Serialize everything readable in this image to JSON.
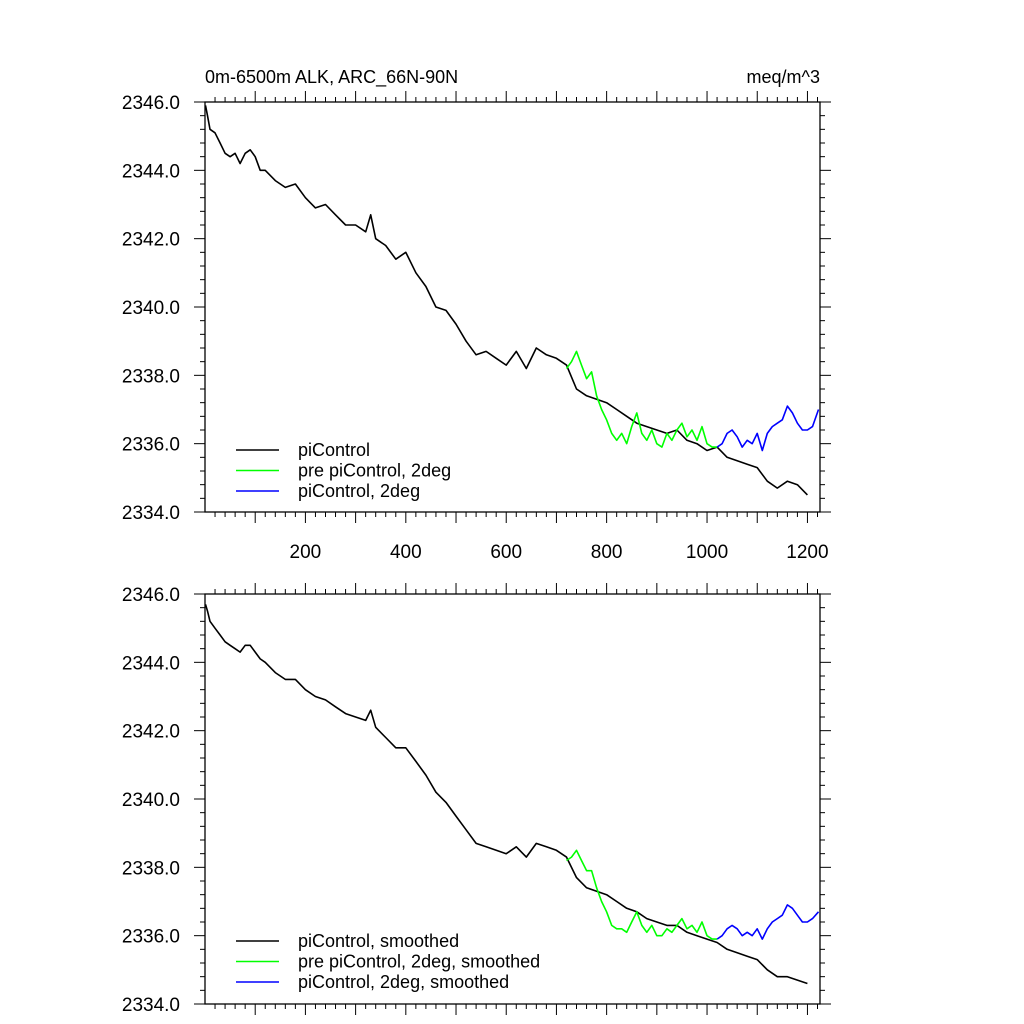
{
  "chart_data": [
    {
      "type": "line",
      "title": "0m-6500m ALK, ARC_66N-90N",
      "units": "meq/m^3",
      "xlim": [
        0,
        1225
      ],
      "ylim": [
        2334.0,
        2346.0
      ],
      "x_ticks": [
        200,
        400,
        600,
        800,
        1000,
        1200
      ],
      "x_tick_labels": [
        "200",
        "400",
        "600",
        "800",
        "1000",
        "1200"
      ],
      "y_ticks": [
        2334.0,
        2336.0,
        2338.0,
        2340.0,
        2342.0,
        2344.0,
        2346.0
      ],
      "y_tick_labels": [
        "2334.0",
        "2336.0",
        "2338.0",
        "2340.0",
        "2342.0",
        "2344.0",
        "2346.0"
      ],
      "legend_position": "bottom-left",
      "series": [
        {
          "name": "piControl",
          "color": "#000000",
          "x": [
            1,
            5,
            10,
            20,
            30,
            40,
            50,
            60,
            70,
            80,
            90,
            100,
            110,
            120,
            140,
            160,
            180,
            200,
            220,
            240,
            260,
            280,
            300,
            320,
            330,
            340,
            360,
            380,
            400,
            420,
            440,
            460,
            480,
            500,
            520,
            540,
            560,
            580,
            600,
            620,
            640,
            660,
            680,
            700,
            720,
            740,
            760,
            780,
            800,
            820,
            840,
            860,
            880,
            900,
            920,
            940,
            960,
            980,
            1000,
            1020,
            1040,
            1060,
            1080,
            1100,
            1120,
            1140,
            1160,
            1180,
            1200
          ],
          "values": [
            2345.9,
            2345.6,
            2345.2,
            2345.1,
            2344.8,
            2344.5,
            2344.4,
            2344.5,
            2344.2,
            2344.5,
            2344.6,
            2344.4,
            2344.0,
            2344.0,
            2343.7,
            2343.5,
            2343.6,
            2343.2,
            2342.9,
            2343.0,
            2342.7,
            2342.4,
            2342.4,
            2342.2,
            2342.7,
            2342.0,
            2341.8,
            2341.4,
            2341.6,
            2341.0,
            2340.6,
            2340.0,
            2339.9,
            2339.5,
            2339.0,
            2338.6,
            2338.7,
            2338.5,
            2338.3,
            2338.7,
            2338.2,
            2338.8,
            2338.6,
            2338.5,
            2338.3,
            2337.6,
            2337.4,
            2337.3,
            2337.2,
            2337.0,
            2336.8,
            2336.6,
            2336.5,
            2336.4,
            2336.3,
            2336.4,
            2336.1,
            2336.0,
            2335.8,
            2335.9,
            2335.6,
            2335.5,
            2335.4,
            2335.3,
            2334.9,
            2334.7,
            2334.9,
            2334.8,
            2334.5
          ]
        },
        {
          "name": "pre piControl, 2deg",
          "color": "#00ff00",
          "x": [
            720,
            730,
            740,
            750,
            760,
            770,
            780,
            790,
            800,
            810,
            820,
            830,
            840,
            850,
            860,
            870,
            880,
            890,
            900,
            910,
            920,
            930,
            940,
            950,
            960,
            970,
            980,
            990,
            1000,
            1010,
            1020
          ],
          "values": [
            2338.2,
            2338.4,
            2338.7,
            2338.3,
            2337.9,
            2338.1,
            2337.4,
            2337.0,
            2336.7,
            2336.3,
            2336.1,
            2336.3,
            2336.0,
            2336.5,
            2336.9,
            2336.3,
            2336.1,
            2336.4,
            2336.0,
            2335.9,
            2336.3,
            2336.1,
            2336.4,
            2336.6,
            2336.2,
            2336.4,
            2336.1,
            2336.5,
            2336.0,
            2335.9,
            2335.9
          ]
        },
        {
          "name": "piControl, 2deg",
          "color": "#0000ff",
          "x": [
            1020,
            1030,
            1040,
            1050,
            1060,
            1070,
            1080,
            1090,
            1100,
            1110,
            1120,
            1130,
            1140,
            1150,
            1160,
            1170,
            1180,
            1190,
            1200,
            1210,
            1222
          ],
          "values": [
            2335.9,
            2336.0,
            2336.3,
            2336.4,
            2336.2,
            2335.9,
            2336.1,
            2336.0,
            2336.3,
            2335.8,
            2336.3,
            2336.5,
            2336.6,
            2336.7,
            2337.1,
            2336.9,
            2336.6,
            2336.4,
            2336.4,
            2336.5,
            2337.0
          ]
        }
      ]
    },
    {
      "type": "line",
      "title": "",
      "xlim": [
        0,
        1225
      ],
      "ylim": [
        2334.0,
        2346.0
      ],
      "x_ticks": [
        200,
        400,
        600,
        800,
        1000,
        1200
      ],
      "y_ticks": [
        2334.0,
        2336.0,
        2338.0,
        2340.0,
        2342.0,
        2344.0,
        2346.0
      ],
      "y_tick_labels": [
        "2334.0",
        "2336.0",
        "2338.0",
        "2340.0",
        "2342.0",
        "2344.0",
        "2346.0"
      ],
      "legend_position": "bottom-left",
      "series": [
        {
          "name": "piControl, smoothed",
          "color": "#000000",
          "x": [
            1,
            5,
            10,
            20,
            30,
            40,
            50,
            60,
            70,
            80,
            90,
            100,
            110,
            120,
            140,
            160,
            180,
            200,
            220,
            240,
            260,
            280,
            300,
            320,
            330,
            340,
            360,
            380,
            400,
            420,
            440,
            460,
            480,
            500,
            520,
            540,
            560,
            580,
            600,
            620,
            640,
            660,
            680,
            700,
            720,
            740,
            760,
            780,
            800,
            820,
            840,
            860,
            880,
            900,
            920,
            940,
            960,
            980,
            1000,
            1020,
            1040,
            1060,
            1080,
            1100,
            1120,
            1140,
            1160,
            1180,
            1200
          ],
          "values": [
            2345.7,
            2345.5,
            2345.2,
            2345.0,
            2344.8,
            2344.6,
            2344.5,
            2344.4,
            2344.3,
            2344.5,
            2344.5,
            2344.3,
            2344.1,
            2344.0,
            2343.7,
            2343.5,
            2343.5,
            2343.2,
            2343.0,
            2342.9,
            2342.7,
            2342.5,
            2342.4,
            2342.3,
            2342.6,
            2342.1,
            2341.8,
            2341.5,
            2341.5,
            2341.1,
            2340.7,
            2340.2,
            2339.9,
            2339.5,
            2339.1,
            2338.7,
            2338.6,
            2338.5,
            2338.4,
            2338.6,
            2338.3,
            2338.7,
            2338.6,
            2338.5,
            2338.3,
            2337.7,
            2337.4,
            2337.3,
            2337.2,
            2337.0,
            2336.8,
            2336.7,
            2336.5,
            2336.4,
            2336.3,
            2336.3,
            2336.1,
            2336.0,
            2335.9,
            2335.8,
            2335.6,
            2335.5,
            2335.4,
            2335.3,
            2335.0,
            2334.8,
            2334.8,
            2334.7,
            2334.6
          ]
        },
        {
          "name": "pre piControl, 2deg, smoothed",
          "color": "#00ff00",
          "x": [
            720,
            730,
            740,
            750,
            760,
            770,
            780,
            790,
            800,
            810,
            820,
            830,
            840,
            850,
            860,
            870,
            880,
            890,
            900,
            910,
            920,
            930,
            940,
            950,
            960,
            970,
            980,
            990,
            1000,
            1010,
            1020
          ],
          "values": [
            2338.2,
            2338.3,
            2338.5,
            2338.2,
            2337.9,
            2337.9,
            2337.4,
            2337.0,
            2336.7,
            2336.3,
            2336.2,
            2336.2,
            2336.1,
            2336.4,
            2336.7,
            2336.3,
            2336.1,
            2336.3,
            2336.0,
            2336.0,
            2336.2,
            2336.1,
            2336.3,
            2336.5,
            2336.2,
            2336.3,
            2336.1,
            2336.4,
            2336.0,
            2335.9,
            2335.9
          ]
        },
        {
          "name": "piControl, 2deg, smoothed",
          "color": "#0000ff",
          "x": [
            1020,
            1030,
            1040,
            1050,
            1060,
            1070,
            1080,
            1090,
            1100,
            1110,
            1120,
            1130,
            1140,
            1150,
            1160,
            1170,
            1180,
            1190,
            1200,
            1210,
            1222
          ],
          "values": [
            2335.9,
            2336.0,
            2336.2,
            2336.3,
            2336.2,
            2336.0,
            2336.1,
            2336.0,
            2336.2,
            2335.9,
            2336.2,
            2336.4,
            2336.5,
            2336.6,
            2336.9,
            2336.8,
            2336.6,
            2336.4,
            2336.4,
            2336.5,
            2336.7
          ]
        }
      ]
    }
  ]
}
